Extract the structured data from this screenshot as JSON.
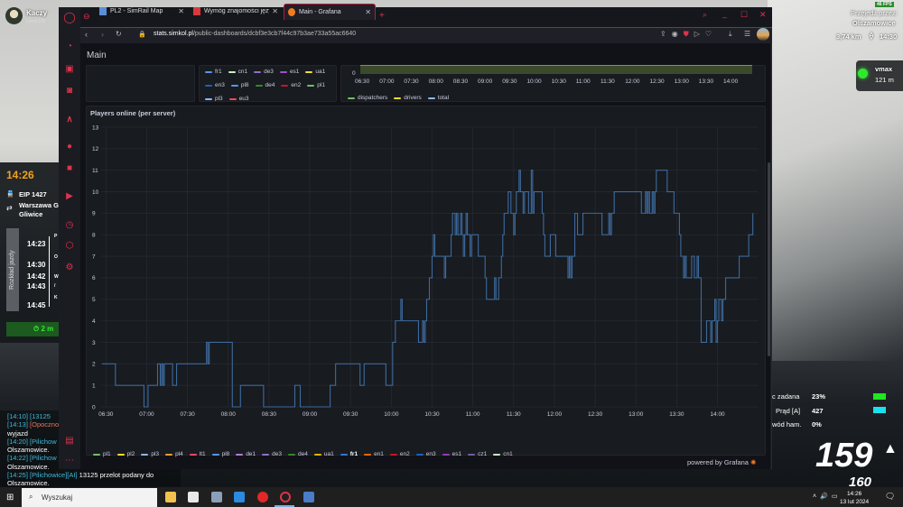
{
  "game": {
    "player": {
      "name": "Kaczy",
      "level": "Level 133"
    },
    "time": "14:26",
    "train": "EIP 1427",
    "route_from": "Warszawa G",
    "route_to": "Gliwice",
    "timetable_button": "Rozkład jazdy",
    "timetable": [
      {
        "time": "14:23",
        "stop": "P"
      },
      {
        "time": "14:30",
        "stop": "O"
      },
      {
        "time": "14:42",
        "stop": "W"
      },
      {
        "time": "14:43",
        "stop": "/"
      },
      {
        "time": "14:45",
        "stop": "K"
      }
    ],
    "countdown": "2 m",
    "chat": [
      {
        "ts": "[14:10]",
        "who": "[13125",
        "text": ""
      },
      {
        "ts": "[14:13]",
        "who": "[Opoczno",
        "text": ""
      },
      {
        "ts": "",
        "who": "",
        "text": "wyjazd"
      },
      {
        "ts": "[14:20]",
        "who": "[Pilichow",
        "text": ""
      },
      {
        "ts": "",
        "who": "",
        "text": "Olszamowice."
      },
      {
        "ts": "[14:22]",
        "who": "[Pilichow",
        "text": ""
      },
      {
        "ts": "",
        "who": "",
        "text": "Olszamowice."
      },
      {
        "ts": "[14:25]",
        "who": "[Pilichowice][AI]",
        "text": "13125 przelot podany do"
      },
      {
        "ts": "",
        "who": "",
        "text": "Olszamowice."
      }
    ],
    "fps": "46 FPS",
    "pass_through_label": "Przejedź przez:",
    "pass_through_station": "Olszamowice",
    "distance": "3,74 km",
    "eta": "14:30",
    "vmax_label": "vmax",
    "vmax_distance": "121 m",
    "signal_color": "#2ee92e",
    "gauges": [
      {
        "label": "c zadana",
        "value": "23%",
        "color": "#1ee81e"
      },
      {
        "label": "Prąd [A]",
        "value": "427",
        "color": "#19e1ee"
      },
      {
        "label": "wód ham.",
        "value": "0%"
      }
    ],
    "speed": "159",
    "speed_limit": "160"
  },
  "browser": {
    "tabs": [
      {
        "title": "PL2 - SimRail Map",
        "active": false
      },
      {
        "title": "Wymóg znajomości języka",
        "active": false
      },
      {
        "title": "Main - Grafana",
        "active": true
      }
    ],
    "url_host": "stats.simkol.pl",
    "url_path": "/public-dashboards/dcbf3e3cb7f44c97b3ae733a55ac6640",
    "accent": "#e0324b"
  },
  "grafana": {
    "dashboard_title": "Main",
    "top_legend": [
      {
        "name": "fr1",
        "color": "#5794f2"
      },
      {
        "name": "cn1",
        "color": "#c8f2c2"
      },
      {
        "name": "de3",
        "color": "#8f70c8"
      },
      {
        "name": "es1",
        "color": "#a352cc"
      },
      {
        "name": "ua1",
        "color": "#fade2a"
      },
      {
        "name": "en3",
        "color": "#1f60c4"
      },
      {
        "name": "pl8",
        "color": "#5794f2"
      },
      {
        "name": "de4",
        "color": "#37872d"
      },
      {
        "name": "en2",
        "color": "#c4162a"
      },
      {
        "name": "pl1",
        "color": "#73bf69"
      },
      {
        "name": "pl3",
        "color": "#8ab8ff"
      },
      {
        "name": "eu3",
        "color": "#f2495c"
      }
    ],
    "top_chart": {
      "y_tick": "0",
      "x_ticks": [
        "06:30",
        "07:00",
        "07:30",
        "08:00",
        "08:30",
        "09:00",
        "09:30",
        "10:00",
        "10:30",
        "11:00",
        "11:30",
        "12:00",
        "12:30",
        "13:00",
        "13:30",
        "14:00"
      ],
      "legend": [
        {
          "name": "dispatchers",
          "color": "#73bf69"
        },
        {
          "name": "drivers",
          "color": "#fade2a"
        },
        {
          "name": "total",
          "color": "#8ab8ff"
        }
      ]
    },
    "powered_by": "powered by Grafana"
  },
  "chart_data": {
    "type": "line",
    "title": "Players online (per server)",
    "ylim": [
      0,
      13
    ],
    "xlim": [
      "06:27",
      "14:30"
    ],
    "y_ticks": [
      "0",
      "1",
      "2",
      "3",
      "4",
      "5",
      "6",
      "7",
      "8",
      "9",
      "10",
      "11",
      "12",
      "13"
    ],
    "x_ticks": [
      "06:30",
      "07:00",
      "07:30",
      "08:00",
      "08:30",
      "09:00",
      "09:30",
      "10:00",
      "10:30",
      "11:00",
      "11:30",
      "12:00",
      "12:30",
      "13:00",
      "13:30",
      "14:00"
    ],
    "grid": true,
    "legend_position": "bottom",
    "line_color": "#3d6a9e",
    "series": [
      {
        "name": "fr1",
        "interpolation": "step-after",
        "points": [
          [
            "06:27",
            2
          ],
          [
            "06:37",
            1
          ],
          [
            "06:58",
            0
          ],
          [
            "07:01",
            1
          ],
          [
            "07:08",
            2
          ],
          [
            "07:10",
            1
          ],
          [
            "07:11",
            2
          ],
          [
            "07:12",
            1
          ],
          [
            "07:13",
            2
          ],
          [
            "07:19",
            1
          ],
          [
            "07:22",
            2
          ],
          [
            "07:44",
            3
          ],
          [
            "07:45",
            2
          ],
          [
            "07:46",
            3
          ],
          [
            "08:03",
            0
          ],
          [
            "08:09",
            1
          ],
          [
            "08:26",
            0
          ],
          [
            "08:49",
            1
          ],
          [
            "08:53",
            0
          ],
          [
            "09:15",
            1
          ],
          [
            "09:19",
            2
          ],
          [
            "09:37",
            1
          ],
          [
            "09:40",
            2
          ],
          [
            "09:56",
            1
          ],
          [
            "10:01",
            3
          ],
          [
            "10:03",
            4
          ],
          [
            "10:07",
            5
          ],
          [
            "10:08",
            4
          ],
          [
            "10:20",
            3
          ],
          [
            "10:23",
            4
          ],
          [
            "10:24",
            3
          ],
          [
            "10:25",
            4
          ],
          [
            "10:26",
            5
          ],
          [
            "10:28",
            6
          ],
          [
            "10:30",
            7
          ],
          [
            "10:31",
            8
          ],
          [
            "10:32",
            7
          ],
          [
            "10:39",
            6
          ],
          [
            "10:40",
            7
          ],
          [
            "10:44",
            8
          ],
          [
            "10:45",
            9
          ],
          [
            "10:47",
            8
          ],
          [
            "10:48",
            9
          ],
          [
            "10:49",
            8
          ],
          [
            "10:51",
            9
          ],
          [
            "10:52",
            8
          ],
          [
            "10:53",
            7
          ],
          [
            "10:54",
            8
          ],
          [
            "10:55",
            9
          ],
          [
            "10:56",
            8
          ],
          [
            "10:58",
            7
          ],
          [
            "10:59",
            8
          ],
          [
            "11:04",
            7
          ],
          [
            "11:09",
            6
          ],
          [
            "11:10",
            5
          ],
          [
            "11:16",
            6
          ],
          [
            "11:17",
            5
          ],
          [
            "11:19",
            6
          ],
          [
            "11:21",
            7
          ],
          [
            "11:22",
            8
          ],
          [
            "11:23",
            9
          ],
          [
            "11:26",
            10
          ],
          [
            "11:28",
            9
          ],
          [
            "11:30",
            8
          ],
          [
            "11:31",
            9
          ],
          [
            "11:32",
            10
          ],
          [
            "11:34",
            11
          ],
          [
            "11:35",
            10
          ],
          [
            "11:37",
            9
          ],
          [
            "11:38",
            10
          ],
          [
            "11:41",
            9
          ],
          [
            "11:43",
            11
          ],
          [
            "11:44",
            9
          ],
          [
            "11:45",
            10
          ],
          [
            "11:51",
            9
          ],
          [
            "11:52",
            8
          ],
          [
            "11:53",
            7
          ],
          [
            "11:57",
            8
          ],
          [
            "12:01",
            7
          ],
          [
            "12:10",
            6
          ],
          [
            "12:11",
            7
          ],
          [
            "12:12",
            6
          ],
          [
            "12:13",
            7
          ],
          [
            "12:15",
            9
          ],
          [
            "12:17",
            8
          ],
          [
            "12:21",
            9
          ],
          [
            "12:35",
            8
          ],
          [
            "12:40",
            9
          ],
          [
            "12:41",
            8
          ],
          [
            "12:42",
            9
          ],
          [
            "12:44",
            10
          ],
          [
            "13:04",
            9
          ],
          [
            "13:07",
            10
          ],
          [
            "13:08",
            9
          ],
          [
            "13:09",
            10
          ],
          [
            "13:10",
            9
          ],
          [
            "13:12",
            10
          ],
          [
            "13:13",
            9
          ],
          [
            "13:14",
            10
          ],
          [
            "13:15",
            11
          ],
          [
            "13:23",
            10
          ],
          [
            "13:28",
            9
          ],
          [
            "13:32",
            8
          ],
          [
            "13:33",
            7
          ],
          [
            "13:35",
            6
          ],
          [
            "13:36",
            7
          ],
          [
            "13:37",
            6
          ],
          [
            "13:41",
            7
          ],
          [
            "13:43",
            6
          ],
          [
            "13:45",
            7
          ],
          [
            "13:46",
            6
          ],
          [
            "13:48",
            3
          ],
          [
            "13:52",
            4
          ],
          [
            "13:55",
            3
          ],
          [
            "13:56",
            4
          ],
          [
            "13:58",
            5
          ],
          [
            "13:59",
            3
          ],
          [
            "14:00",
            4
          ],
          [
            "14:01",
            5
          ],
          [
            "14:03",
            4
          ],
          [
            "14:04",
            5
          ],
          [
            "14:06",
            6
          ],
          [
            "14:16",
            7
          ],
          [
            "14:23",
            8
          ],
          [
            "14:26",
            9
          ]
        ]
      }
    ],
    "legend": [
      {
        "name": "pl1",
        "color": "#73bf69"
      },
      {
        "name": "pl2",
        "color": "#fade2a"
      },
      {
        "name": "pl3",
        "color": "#8ab8ff"
      },
      {
        "name": "pl4",
        "color": "#ff9830"
      },
      {
        "name": "lt1",
        "color": "#f2495c"
      },
      {
        "name": "pl8",
        "color": "#5794f2"
      },
      {
        "name": "de1",
        "color": "#b877d9"
      },
      {
        "name": "de3",
        "color": "#8f70c8"
      },
      {
        "name": "de4",
        "color": "#37872d"
      },
      {
        "name": "ua1",
        "color": "#e0b400"
      },
      {
        "name": "fr1",
        "color": "#3274d9"
      },
      {
        "name": "en1",
        "color": "#fa6400"
      },
      {
        "name": "en2",
        "color": "#c4162a"
      },
      {
        "name": "en3",
        "color": "#1f60c4"
      },
      {
        "name": "es1",
        "color": "#8f3bb8"
      },
      {
        "name": "cz1",
        "color": "#705da0"
      },
      {
        "name": "cn1",
        "color": "#c8f2c2"
      }
    ]
  },
  "taskbar": {
    "search_placeholder": "Wyszukaj",
    "time": "14:26",
    "date": "13 lut 2024"
  }
}
